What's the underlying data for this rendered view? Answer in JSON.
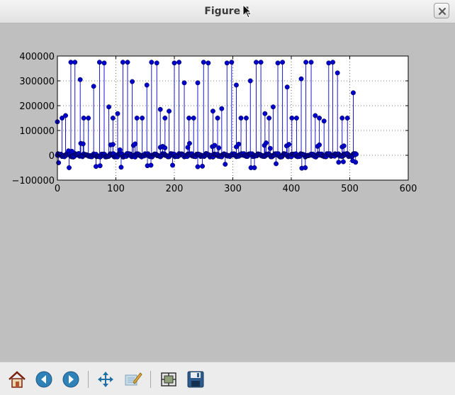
{
  "window": {
    "title": "Figure 1"
  },
  "toolbar": {
    "buttons": [
      {
        "name": "home-button",
        "icon": "home-icon"
      },
      {
        "name": "back-button",
        "icon": "back-arrow-icon"
      },
      {
        "name": "forward-button",
        "icon": "forward-arrow-icon"
      },
      {
        "name": "pan-button",
        "icon": "pan-move-icon"
      },
      {
        "name": "zoom-button",
        "icon": "zoom-rect-icon"
      },
      {
        "name": "subplots-button",
        "icon": "configure-subplots-icon"
      },
      {
        "name": "save-button",
        "icon": "save-floppy-icon"
      }
    ]
  },
  "colors": {
    "series": "#0000cc",
    "baseline": "#cc0000"
  },
  "chart_data": {
    "type": "scatter",
    "style": "stem",
    "xlim": [
      0,
      600
    ],
    "ylim": [
      -100000,
      400000
    ],
    "xticks": [
      "0",
      "100",
      "200",
      "300",
      "400",
      "500",
      "600"
    ],
    "yticks": [
      "−100000",
      "0",
      "100000",
      "200000",
      "300000",
      "400000"
    ],
    "grid": true,
    "n_points": 512,
    "tall": [
      [
        0,
        135000
      ],
      [
        8,
        150000
      ],
      [
        14,
        160000
      ],
      [
        23,
        375000
      ],
      [
        30,
        375000
      ],
      [
        39,
        305000
      ],
      [
        45,
        150000
      ],
      [
        53,
        150000
      ],
      [
        62,
        278000
      ],
      [
        72,
        375000
      ],
      [
        80,
        372000
      ],
      [
        88,
        195000
      ],
      [
        95,
        150000
      ],
      [
        103,
        168000
      ],
      [
        112,
        375000
      ],
      [
        120,
        375000
      ],
      [
        128,
        297000
      ],
      [
        136,
        150000
      ],
      [
        145,
        150000
      ],
      [
        153,
        283000
      ],
      [
        161,
        375000
      ],
      [
        170,
        372000
      ],
      [
        176,
        185000
      ],
      [
        184,
        150000
      ],
      [
        191,
        178000
      ],
      [
        200,
        372000
      ],
      [
        208,
        375000
      ],
      [
        217,
        292000
      ],
      [
        225,
        150000
      ],
      [
        233,
        150000
      ],
      [
        240,
        292000
      ],
      [
        250,
        375000
      ],
      [
        258,
        372000
      ],
      [
        266,
        178000
      ],
      [
        274,
        150000
      ],
      [
        281,
        188000
      ],
      [
        290,
        372000
      ],
      [
        298,
        375000
      ],
      [
        306,
        283000
      ],
      [
        314,
        150000
      ],
      [
        323,
        150000
      ],
      [
        330,
        300000
      ],
      [
        340,
        375000
      ],
      [
        348,
        375000
      ],
      [
        355,
        168000
      ],
      [
        362,
        150000
      ],
      [
        369,
        195000
      ],
      [
        377,
        372000
      ],
      [
        385,
        375000
      ],
      [
        393,
        275000
      ],
      [
        401,
        150000
      ],
      [
        409,
        150000
      ],
      [
        417,
        308000
      ],
      [
        425,
        375000
      ],
      [
        434,
        375000
      ],
      [
        441,
        160000
      ],
      [
        448,
        150000
      ],
      [
        456,
        138000
      ],
      [
        464,
        372000
      ],
      [
        471,
        375000
      ],
      [
        479,
        332000
      ],
      [
        487,
        150000
      ],
      [
        496,
        150000
      ],
      [
        506,
        252000
      ]
    ],
    "negative": [
      [
        2,
        -30000
      ],
      [
        20,
        -50000
      ],
      [
        66,
        -45000
      ],
      [
        73,
        -42000
      ],
      [
        109,
        -48000
      ],
      [
        154,
        -42000
      ],
      [
        160,
        -40000
      ],
      [
        197,
        -40000
      ],
      [
        240,
        -46000
      ],
      [
        248,
        -44000
      ],
      [
        287,
        -36000
      ],
      [
        331,
        -50000
      ],
      [
        337,
        -50000
      ],
      [
        374,
        -34000
      ],
      [
        418,
        -52000
      ],
      [
        424,
        -50000
      ],
      [
        481,
        -28000
      ],
      [
        489,
        -26000
      ],
      [
        505,
        -22000
      ],
      [
        510,
        -28000
      ]
    ],
    "mid": [
      [
        19,
        18000
      ],
      [
        25,
        16000
      ],
      [
        40,
        48000
      ],
      [
        44,
        46000
      ],
      [
        91,
        42000
      ],
      [
        95,
        44000
      ],
      [
        107,
        22000
      ],
      [
        130,
        40000
      ],
      [
        133,
        46000
      ],
      [
        176,
        32000
      ],
      [
        180,
        36000
      ],
      [
        184,
        30000
      ],
      [
        223,
        32000
      ],
      [
        226,
        48000
      ],
      [
        265,
        35000
      ],
      [
        269,
        40000
      ],
      [
        276,
        30000
      ],
      [
        306,
        34000
      ],
      [
        310,
        45000
      ],
      [
        354,
        40000
      ],
      [
        357,
        50000
      ],
      [
        364,
        28000
      ],
      [
        392,
        38000
      ],
      [
        396,
        44000
      ],
      [
        445,
        36000
      ],
      [
        448,
        42000
      ],
      [
        487,
        34000
      ],
      [
        490,
        38000
      ]
    ]
  }
}
